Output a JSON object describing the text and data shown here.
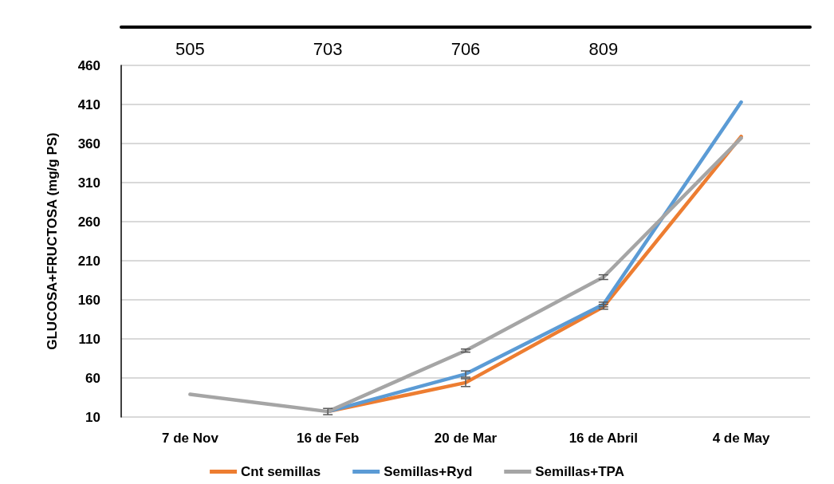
{
  "chart_data": {
    "type": "line",
    "ylabel": "GLUCOSA+FRUCTOSA (mg/g PS)",
    "categories": [
      "7 de Nov",
      "16 de Feb",
      "20 de Mar",
      "16 de Abril",
      "4 de May"
    ],
    "series": [
      {
        "name": "Cnt semillas",
        "color": "#ed7d31",
        "values": [
          null,
          17,
          54,
          151,
          369
        ],
        "errors": [
          null,
          null,
          5,
          3,
          null
        ]
      },
      {
        "name": "Semillas+Ryd",
        "color": "#5b9bd5",
        "values": [
          null,
          17,
          65,
          154,
          413
        ],
        "errors": [
          null,
          null,
          4,
          3,
          null
        ]
      },
      {
        "name": "Semillas+TPA",
        "color": "#a5a5a5",
        "values": [
          39,
          17,
          95,
          189,
          367
        ],
        "errors": [
          null,
          4,
          2,
          3,
          null
        ]
      }
    ],
    "annotations": [
      "505",
      "703",
      "706",
      "809"
    ],
    "ylim": [
      10,
      460
    ],
    "yticks": [
      10,
      60,
      110,
      160,
      210,
      260,
      310,
      360,
      410,
      460
    ],
    "grid": "y",
    "legend": "bottom",
    "marker": "none",
    "line_style": "solid"
  }
}
